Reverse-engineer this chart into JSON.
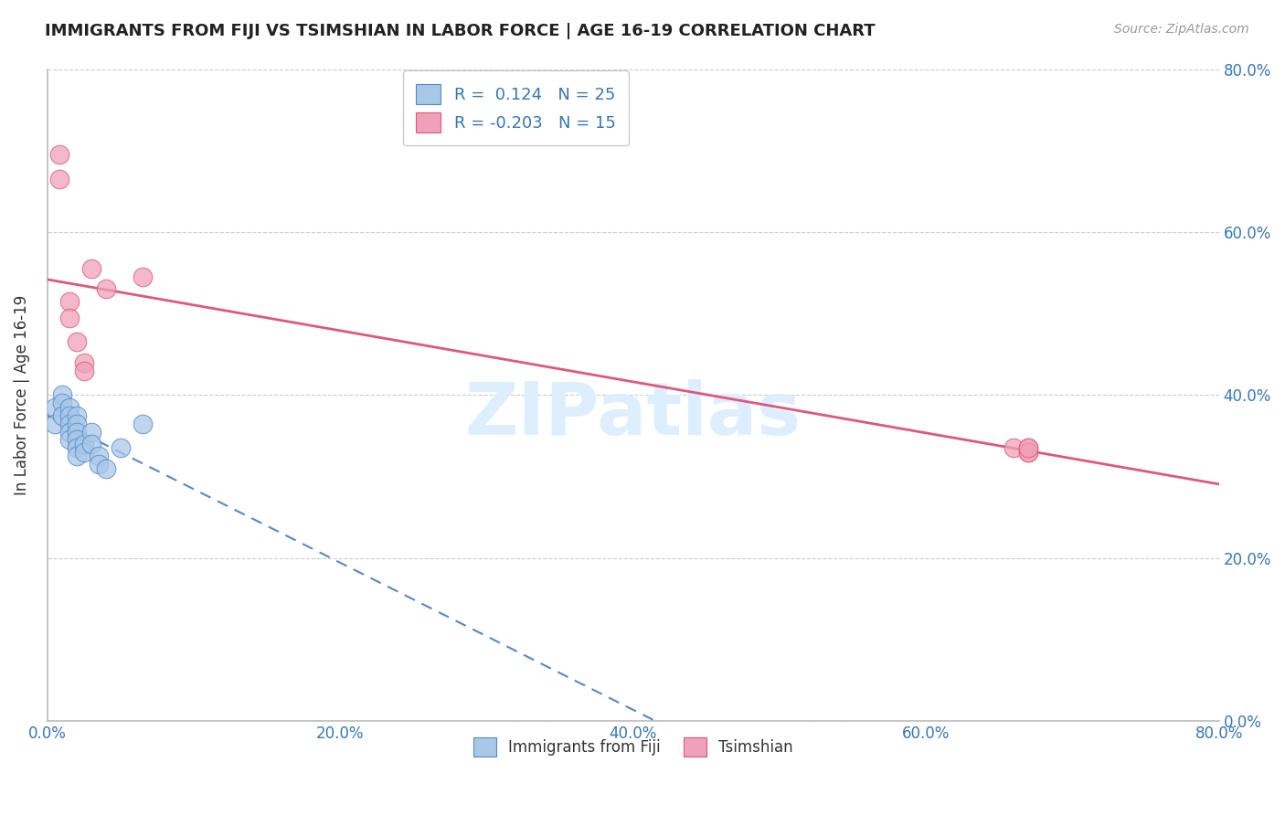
{
  "title": "IMMIGRANTS FROM FIJI VS TSIMSHIAN IN LABOR FORCE | AGE 16-19 CORRELATION CHART",
  "source": "Source: ZipAtlas.com",
  "ylabel": "In Labor Force | Age 16-19",
  "xlim": [
    0.0,
    0.8
  ],
  "ylim": [
    0.0,
    0.8
  ],
  "xticks": [
    0.0,
    0.2,
    0.4,
    0.6,
    0.8
  ],
  "yticks": [
    0.0,
    0.2,
    0.4,
    0.6,
    0.8
  ],
  "fiji_R": 0.124,
  "fiji_N": 25,
  "tsimshian_R": -0.203,
  "tsimshian_N": 15,
  "fiji_color": "#a8c8e8",
  "tsimshian_color": "#f0a0b8",
  "fiji_line_color": "#5588cc",
  "tsimshian_line_color": "#e05878",
  "watermark": "ZIPatlas",
  "watermark_color": "#ddeeff",
  "fiji_x": [
    0.005,
    0.005,
    0.01,
    0.01,
    0.01,
    0.015,
    0.015,
    0.015,
    0.015,
    0.015,
    0.02,
    0.02,
    0.02,
    0.02,
    0.02,
    0.02,
    0.025,
    0.025,
    0.03,
    0.03,
    0.035,
    0.035,
    0.04,
    0.05,
    0.065
  ],
  "fiji_y": [
    0.385,
    0.365,
    0.4,
    0.39,
    0.375,
    0.385,
    0.375,
    0.365,
    0.355,
    0.345,
    0.375,
    0.365,
    0.355,
    0.345,
    0.335,
    0.325,
    0.34,
    0.33,
    0.355,
    0.34,
    0.325,
    0.315,
    0.31,
    0.335,
    0.365
  ],
  "tsimshian_x": [
    0.008,
    0.008,
    0.015,
    0.015,
    0.02,
    0.025,
    0.025,
    0.03,
    0.04,
    0.065,
    0.66,
    0.67,
    0.67,
    0.67,
    0.67
  ],
  "tsimshian_y": [
    0.695,
    0.665,
    0.515,
    0.495,
    0.465,
    0.44,
    0.43,
    0.555,
    0.53,
    0.545,
    0.335,
    0.335,
    0.33,
    0.33,
    0.335
  ]
}
